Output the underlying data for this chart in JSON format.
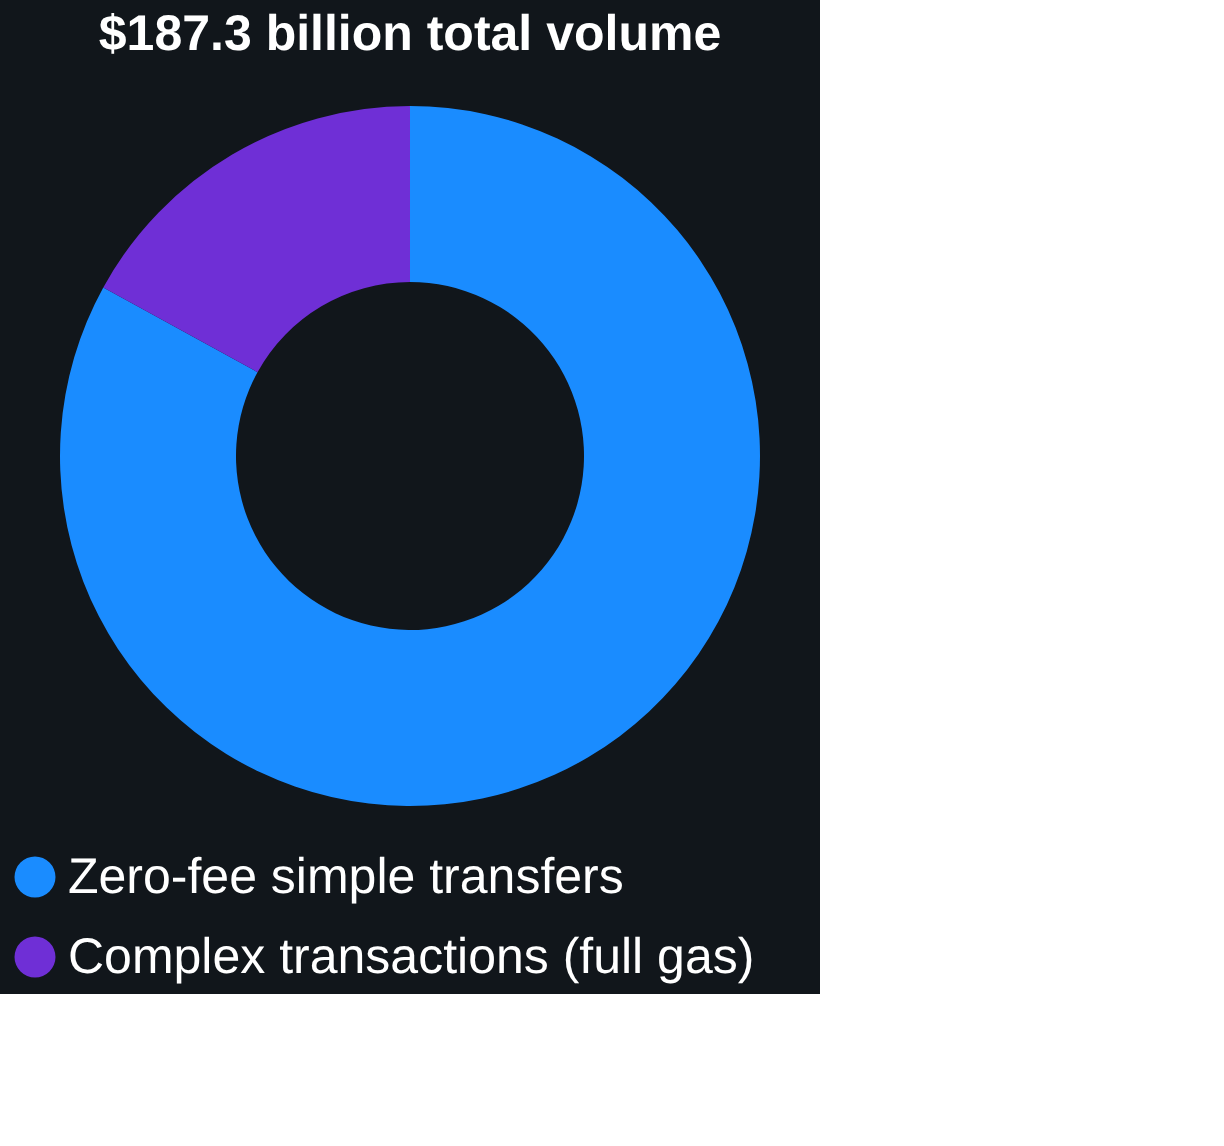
{
  "chart_data": {
    "type": "donut",
    "title": "$187.3 billion total volume",
    "categories": [
      "Zero-fee simple transfers",
      "Complex transactions (full gas)"
    ],
    "values": [
      83,
      17
    ],
    "colors": [
      "#1a8cff",
      "#6f2fd6"
    ],
    "legend": "bottom"
  }
}
